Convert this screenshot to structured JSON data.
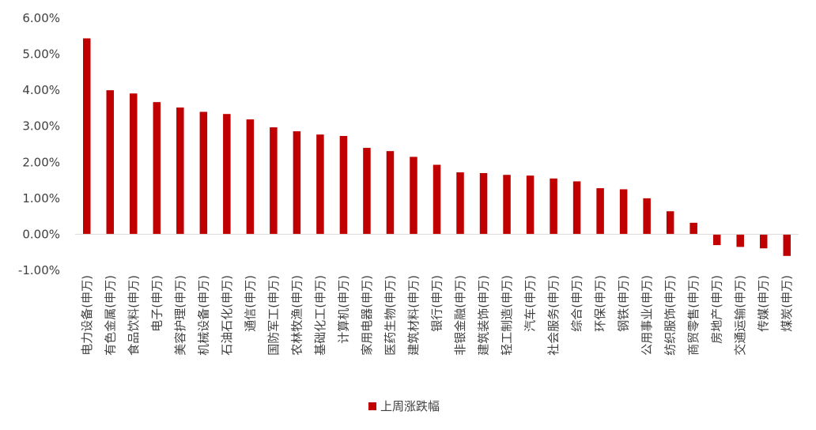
{
  "chart_data": {
    "type": "bar",
    "categories": [
      "电力设备(申万)",
      "有色金属(申万)",
      "食品饮料(申万)",
      "电子(申万)",
      "美容护理(申万)",
      "机械设备(申万)",
      "石油石化(申万)",
      "通信(申万)",
      "国防军工(申万)",
      "农林牧渔(申万)",
      "基础化工(申万)",
      "计算机(申万)",
      "家用电器(申万)",
      "医药生物(申万)",
      "建筑材料(申万)",
      "银行(申万)",
      "非银金融(申万)",
      "建筑装饰(申万)",
      "轻工制造(申万)",
      "汽车(申万)",
      "社会服务(申万)",
      "综合(申万)",
      "环保(申万)",
      "钢铁(申万)",
      "公用事业(申万)",
      "纺织服饰(申万)",
      "商贸零售(申万)",
      "房地产(申万)",
      "交通运输(申万)",
      "传媒(申万)",
      "煤炭(申万)"
    ],
    "series": [
      {
        "name": "上周涨跌幅",
        "values": [
          5.44,
          4.0,
          3.91,
          3.67,
          3.52,
          3.4,
          3.34,
          3.19,
          2.97,
          2.86,
          2.77,
          2.73,
          2.4,
          2.31,
          2.15,
          1.93,
          1.72,
          1.7,
          1.65,
          1.63,
          1.55,
          1.47,
          1.28,
          1.25,
          1.0,
          0.64,
          0.32,
          -0.3,
          -0.35,
          -0.39,
          -0.6
        ]
      }
    ],
    "y_ticks": [
      "6.00%",
      "5.00%",
      "4.00%",
      "3.00%",
      "2.00%",
      "1.00%",
      "0.00%",
      "-1.00%"
    ],
    "ylim": [
      -1,
      6
    ],
    "legend_position": "bottom",
    "grid": false,
    "colors": {
      "bar": "#C00000",
      "axis": "#D9D9D9",
      "text": "#404040"
    }
  }
}
